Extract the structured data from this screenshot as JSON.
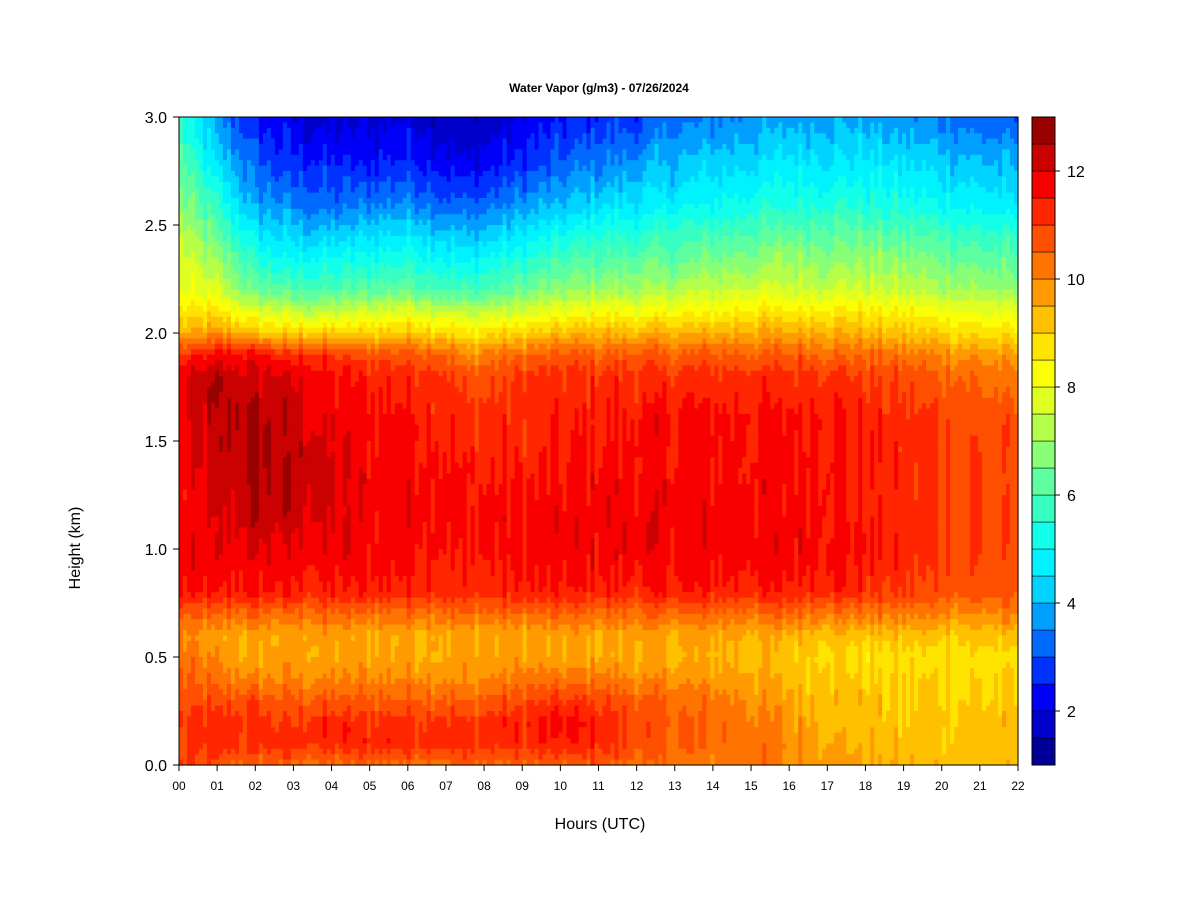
{
  "chart_data": {
    "type": "heatmap",
    "title": "Water Vapor (g/m3) - 07/26/2024",
    "xlabel": "Hours (UTC)",
    "ylabel": "Height (km)",
    "xlim": [
      0,
      22
    ],
    "ylim": [
      0,
      3
    ],
    "x_ticks": [
      "00",
      "01",
      "02",
      "03",
      "04",
      "05",
      "06",
      "07",
      "08",
      "09",
      "10",
      "11",
      "12",
      "13",
      "14",
      "15",
      "16",
      "17",
      "18",
      "19",
      "20",
      "21",
      "22"
    ],
    "y_ticks": [
      "0.0",
      "0.5",
      "1.0",
      "1.5",
      "2.0",
      "2.5",
      "3.0"
    ],
    "colorbar": {
      "min": 1,
      "max": 13,
      "levels": 24,
      "ticks": [
        "2",
        "4",
        "6",
        "8",
        "10",
        "12"
      ],
      "tick_values": [
        2,
        4,
        6,
        8,
        10,
        12
      ]
    },
    "colormap": [
      "#00007f",
      "#0000c4",
      "#0000ff",
      "#0050ff",
      "#0096ff",
      "#00dcff",
      "#00ffff",
      "#31ffc6",
      "#63ff9c",
      "#a0ff5f",
      "#d9ff26",
      "#ffff00",
      "#ffd300",
      "#ffa000",
      "#ff6e00",
      "#ff3c00",
      "#ff0000",
      "#c40000",
      "#7f0000"
    ],
    "grid": false,
    "hours": [
      0,
      1,
      2,
      3,
      4,
      5,
      6,
      7,
      7.6,
      8,
      9,
      10,
      11,
      12,
      13,
      14,
      15,
      16,
      17,
      18,
      19,
      20,
      21,
      22
    ],
    "heights_km": [
      0.0,
      0.1,
      0.2,
      0.3,
      0.4,
      0.5,
      0.6,
      0.7,
      0.8,
      1.0,
      1.2,
      1.4,
      1.6,
      1.8,
      1.9,
      2.0,
      2.1,
      2.2,
      2.4,
      2.6,
      2.8,
      3.0
    ],
    "values": [
      [
        11.0,
        10.8,
        11.0,
        10.8,
        10.6,
        10.2,
        10.0,
        10.6,
        11.6,
        11.8,
        11.6,
        11.6,
        11.8,
        11.8,
        11.0,
        9.4,
        8.6,
        8.0,
        7.6,
        6.8,
        6.2,
        5.6
      ],
      [
        10.6,
        11.2,
        11.2,
        10.8,
        10.2,
        9.8,
        9.6,
        10.4,
        11.4,
        11.8,
        12.0,
        12.2,
        12.4,
        12.4,
        11.6,
        9.8,
        8.6,
        7.6,
        6.6,
        5.4,
        4.4,
        3.6
      ],
      [
        10.6,
        11.2,
        11.2,
        10.8,
        10.0,
        9.6,
        9.6,
        10.4,
        11.6,
        12.0,
        12.4,
        12.6,
        12.6,
        12.2,
        11.6,
        9.2,
        7.8,
        6.4,
        5.0,
        3.8,
        3.0,
        2.4
      ],
      [
        10.4,
        11.2,
        11.0,
        10.6,
        10.0,
        9.6,
        9.6,
        10.4,
        11.4,
        11.8,
        12.4,
        12.4,
        12.2,
        12.0,
        11.2,
        9.0,
        7.4,
        6.0,
        4.6,
        3.4,
        2.6,
        2.0
      ],
      [
        10.4,
        11.2,
        11.2,
        10.6,
        10.0,
        9.6,
        9.6,
        10.4,
        11.4,
        11.8,
        12.0,
        12.0,
        11.8,
        11.6,
        11.0,
        9.0,
        7.4,
        6.0,
        4.6,
        3.2,
        2.4,
        1.8
      ],
      [
        10.4,
        11.4,
        11.2,
        10.6,
        10.0,
        9.6,
        9.6,
        10.4,
        11.4,
        11.8,
        11.8,
        11.8,
        11.6,
        11.4,
        10.8,
        9.0,
        7.6,
        6.2,
        4.8,
        3.4,
        2.4,
        1.8
      ],
      [
        10.4,
        11.4,
        11.2,
        10.6,
        10.0,
        9.6,
        9.6,
        10.4,
        11.4,
        11.8,
        11.8,
        11.8,
        11.6,
        11.4,
        10.8,
        9.2,
        7.8,
        6.4,
        5.0,
        3.6,
        2.6,
        2.0
      ],
      [
        10.4,
        11.4,
        11.2,
        10.6,
        10.0,
        9.6,
        9.6,
        10.4,
        11.4,
        11.6,
        11.8,
        11.6,
        11.4,
        11.2,
        10.6,
        9.0,
        7.6,
        6.0,
        4.6,
        3.2,
        2.2,
        1.6
      ],
      [
        10.4,
        11.2,
        11.0,
        10.4,
        9.8,
        9.6,
        9.6,
        10.4,
        11.2,
        11.4,
        11.4,
        11.4,
        11.2,
        10.6,
        9.8,
        8.6,
        7.2,
        5.8,
        4.4,
        3.0,
        2.0,
        1.4
      ],
      [
        10.4,
        11.2,
        11.2,
        10.6,
        10.0,
        9.6,
        9.6,
        10.4,
        11.2,
        11.6,
        11.6,
        11.4,
        11.2,
        10.8,
        10.2,
        8.8,
        7.4,
        6.0,
        4.6,
        3.2,
        2.2,
        1.6
      ],
      [
        10.4,
        11.2,
        11.4,
        10.8,
        10.2,
        9.6,
        9.6,
        10.4,
        11.4,
        11.6,
        11.6,
        11.4,
        11.2,
        11.0,
        10.4,
        9.0,
        7.6,
        6.4,
        5.0,
        3.6,
        2.6,
        2.0
      ],
      [
        10.6,
        11.4,
        11.6,
        11.0,
        10.2,
        9.6,
        9.6,
        10.4,
        11.4,
        11.8,
        11.6,
        11.4,
        11.4,
        11.2,
        10.6,
        9.2,
        8.0,
        6.8,
        5.4,
        4.0,
        3.0,
        2.4
      ],
      [
        10.6,
        11.4,
        11.4,
        11.0,
        10.2,
        9.6,
        9.6,
        10.4,
        11.4,
        11.8,
        11.8,
        11.6,
        11.4,
        11.2,
        10.6,
        9.4,
        8.2,
        7.0,
        5.8,
        4.4,
        3.4,
        2.6
      ],
      [
        10.4,
        10.8,
        10.8,
        10.6,
        10.0,
        9.6,
        9.6,
        10.4,
        11.4,
        11.8,
        11.8,
        11.6,
        11.6,
        11.2,
        10.6,
        9.4,
        8.2,
        7.0,
        5.8,
        4.6,
        3.6,
        2.8
      ],
      [
        10.2,
        10.6,
        10.6,
        10.4,
        9.8,
        9.4,
        9.6,
        10.4,
        11.4,
        11.8,
        11.8,
        11.6,
        11.6,
        11.2,
        10.6,
        9.4,
        8.2,
        7.2,
        6.0,
        4.8,
        4.0,
        3.2
      ],
      [
        10.2,
        10.4,
        10.4,
        10.2,
        9.8,
        9.4,
        9.6,
        10.4,
        11.4,
        11.8,
        11.8,
        11.6,
        11.6,
        11.2,
        10.6,
        9.4,
        8.4,
        7.4,
        6.2,
        5.0,
        4.2,
        3.4
      ],
      [
        10.2,
        10.4,
        10.2,
        10.0,
        9.6,
        9.4,
        9.6,
        10.4,
        11.4,
        11.8,
        11.6,
        11.6,
        11.6,
        11.2,
        10.6,
        9.6,
        8.6,
        7.6,
        6.4,
        5.2,
        4.4,
        3.6
      ],
      [
        10.0,
        10.0,
        9.8,
        9.6,
        9.4,
        9.2,
        9.4,
        10.4,
        11.4,
        11.8,
        11.6,
        11.6,
        11.6,
        11.2,
        10.6,
        9.6,
        8.6,
        7.6,
        6.6,
        5.4,
        4.6,
        3.8
      ],
      [
        9.8,
        9.6,
        9.4,
        9.4,
        9.2,
        9.0,
        9.4,
        10.4,
        11.4,
        11.8,
        11.6,
        11.6,
        11.6,
        11.2,
        10.6,
        9.6,
        8.6,
        7.6,
        6.6,
        5.4,
        4.6,
        3.8
      ],
      [
        9.6,
        9.4,
        9.2,
        9.2,
        9.0,
        8.8,
        9.2,
        10.2,
        11.2,
        11.6,
        11.4,
        11.4,
        11.4,
        11.0,
        10.4,
        9.4,
        8.6,
        7.6,
        6.6,
        5.4,
        4.6,
        3.8
      ],
      [
        9.4,
        9.2,
        9.0,
        9.0,
        9.0,
        8.8,
        9.2,
        10.2,
        11.0,
        11.2,
        11.2,
        11.2,
        11.2,
        10.8,
        10.2,
        9.2,
        8.4,
        7.4,
        6.4,
        5.2,
        4.4,
        3.6
      ],
      [
        9.4,
        9.2,
        9.2,
        9.0,
        9.0,
        8.8,
        9.2,
        10.0,
        10.8,
        11.0,
        11.0,
        11.0,
        11.0,
        10.6,
        10.0,
        9.0,
        8.2,
        7.2,
        6.2,
        5.0,
        4.2,
        3.4
      ],
      [
        9.4,
        9.2,
        9.2,
        9.0,
        9.0,
        8.8,
        9.2,
        10.0,
        10.8,
        11.0,
        11.0,
        11.0,
        10.8,
        10.4,
        9.8,
        8.8,
        8.0,
        7.0,
        6.0,
        4.8,
        4.0,
        3.2
      ],
      [
        9.4,
        9.2,
        9.2,
        9.0,
        9.0,
        8.8,
        9.2,
        10.0,
        10.6,
        10.8,
        10.8,
        10.8,
        10.6,
        10.2,
        9.6,
        8.6,
        7.8,
        6.8,
        5.8,
        4.6,
        3.8,
        3.0
      ]
    ]
  }
}
